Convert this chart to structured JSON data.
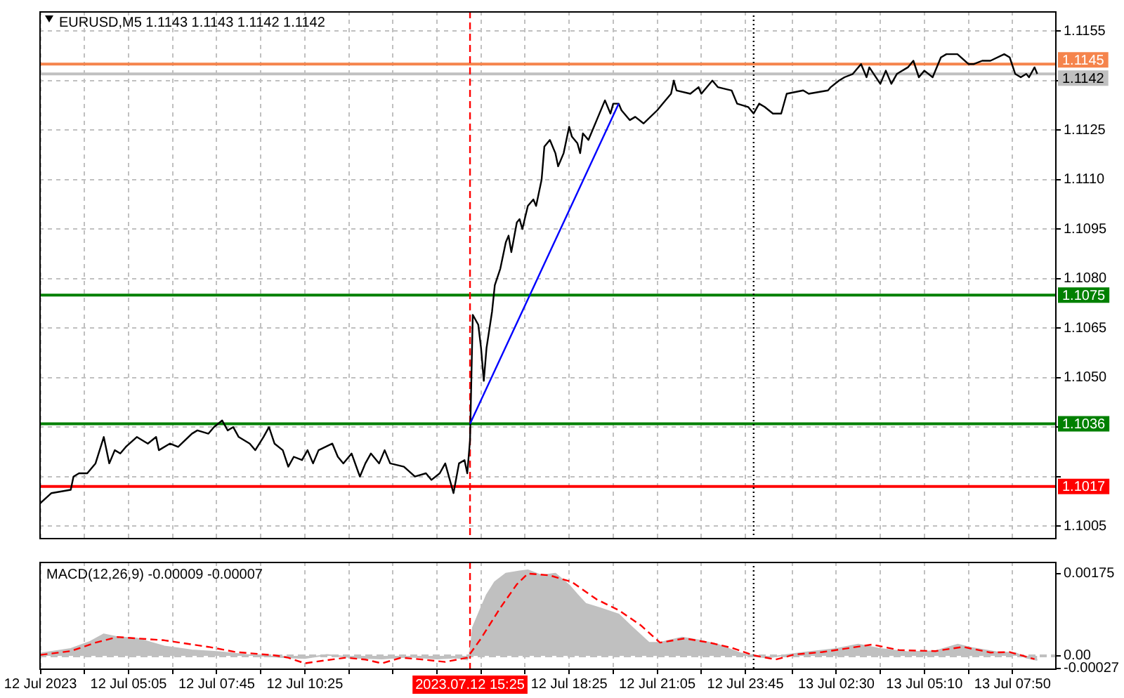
{
  "chart_data": [
    {
      "type": "line",
      "title": "EURUSD,M5 1.1143 1.1143 1.1142 1.1142",
      "xlim": [
        "2023-07-12T02:23",
        "2023-07-13T09:10"
      ],
      "xticks": [
        {
          "value": "2023-07-12T02:25",
          "label": null
        },
        {
          "value": "2023-07-12T03:45",
          "label": null
        },
        {
          "value": "2023-07-12T05:05",
          "label": null
        },
        {
          "value": "2023-07-12T06:25",
          "label": null
        },
        {
          "value": "2023-07-12T07:45",
          "label": null
        },
        {
          "value": "2023-07-12T09:05",
          "label": null
        },
        {
          "value": "2023-07-12T10:25",
          "label": null
        },
        {
          "value": "2023-07-12T11:45",
          "label": null
        },
        {
          "value": "2023-07-12T13:05",
          "label": null
        },
        {
          "value": "2023-07-12T14:25",
          "label": null
        },
        {
          "value": "2023-07-12T15:45",
          "label": null
        },
        {
          "value": "2023-07-12T17:05",
          "label": null
        },
        {
          "value": "2023-07-12T18:25",
          "label": null
        },
        {
          "value": "2023-07-12T19:45",
          "label": null
        },
        {
          "value": "2023-07-12T21:05",
          "label": null
        },
        {
          "value": "2023-07-12T22:25",
          "label": null
        },
        {
          "value": "2023-07-12T23:45",
          "label": null
        },
        {
          "value": "2023-07-13T01:10",
          "label": null
        },
        {
          "value": "2023-07-13T02:30",
          "label": null
        },
        {
          "value": "2023-07-13T03:50",
          "label": null
        },
        {
          "value": "2023-07-13T05:10",
          "label": null
        },
        {
          "value": "2023-07-13T06:30",
          "label": null
        },
        {
          "value": "2023-07-13T07:50",
          "label": null
        }
      ],
      "ylim": [
        1.1001,
        1.1161
      ],
      "yticks": [
        1.1005,
        {
          "value": 1.102,
          "label": null
        },
        {
          "value": 1.1035,
          "label": null
        },
        {
          "value": 1.105,
          "label": "1.1050"
        },
        1.1065,
        {
          "value": 1.108,
          "label": "1.1080"
        },
        1.1095,
        {
          "value": 1.111,
          "label": "1.1110"
        },
        1.1125,
        {
          "value": 1.114,
          "label": null
        },
        1.1155
      ],
      "grid": true,
      "tick_labels": "y",
      "marker": "none",
      "series": [
        {
          "color": "#000000",
          "x": [
            "2023-07-12T02:25",
            "2023-07-12T02:45",
            "2023-07-12T03:20",
            "2023-07-12T03:25",
            "2023-07-12T03:35",
            "2023-07-12T03:50",
            "2023-07-12T04:05",
            "2023-07-12T04:20",
            "2023-07-12T04:30",
            "2023-07-12T04:40",
            "2023-07-12T04:50",
            "2023-07-12T05:00",
            "2023-07-12T05:20",
            "2023-07-12T05:40",
            "2023-07-12T05:55",
            "2023-07-12T06:00",
            "2023-07-12T06:20",
            "2023-07-12T06:35",
            "2023-07-12T07:00",
            "2023-07-12T07:10",
            "2023-07-12T07:30",
            "2023-07-12T07:40",
            "2023-07-12T07:55",
            "2023-07-12T08:05",
            "2023-07-12T08:15",
            "2023-07-12T08:25",
            "2023-07-12T08:45",
            "2023-07-12T08:55",
            "2023-07-12T09:10",
            "2023-07-12T09:20",
            "2023-07-12T09:30",
            "2023-07-12T09:45",
            "2023-07-12T09:55",
            "2023-07-12T10:05",
            "2023-07-12T10:20",
            "2023-07-12T10:30",
            "2023-07-12T10:40",
            "2023-07-12T10:50",
            "2023-07-12T11:15",
            "2023-07-12T11:25",
            "2023-07-12T11:35",
            "2023-07-12T11:50",
            "2023-07-12T12:05",
            "2023-07-12T12:15",
            "2023-07-12T12:25",
            "2023-07-12T12:40",
            "2023-07-12T12:50",
            "2023-07-12T13:00",
            "2023-07-12T13:25",
            "2023-07-12T13:45",
            "2023-07-12T14:05",
            "2023-07-12T14:15",
            "2023-07-12T14:30",
            "2023-07-12T14:40",
            "2023-07-12T14:55",
            "2023-07-12T15:05",
            "2023-07-12T15:15",
            "2023-07-12T15:20",
            "2023-07-12T15:25",
            "2023-07-12T15:30",
            "2023-07-12T15:40",
            "2023-07-12T15:45",
            "2023-07-12T15:50",
            "2023-07-12T15:55",
            "2023-07-12T16:05",
            "2023-07-12T16:10",
            "2023-07-12T16:20",
            "2023-07-12T16:30",
            "2023-07-12T16:35",
            "2023-07-12T16:40",
            "2023-07-12T16:50",
            "2023-07-12T16:55",
            "2023-07-12T17:00",
            "2023-07-12T17:10",
            "2023-07-12T17:20",
            "2023-07-12T17:25",
            "2023-07-12T17:35",
            "2023-07-12T17:40",
            "2023-07-12T17:50",
            "2023-07-12T18:00",
            "2023-07-12T18:05",
            "2023-07-12T18:15",
            "2023-07-12T18:25",
            "2023-07-12T18:30",
            "2023-07-12T18:40",
            "2023-07-12T18:45",
            "2023-07-12T18:50",
            "2023-07-12T19:00",
            "2023-07-12T19:10",
            "2023-07-12T19:15",
            "2023-07-12T19:30",
            "2023-07-12T19:40",
            "2023-07-12T19:45",
            "2023-07-12T19:55",
            "2023-07-12T20:00",
            "2023-07-12T20:15",
            "2023-07-12T20:25",
            "2023-07-12T20:40",
            "2023-07-12T21:05",
            "2023-07-12T21:15",
            "2023-07-12T21:30",
            "2023-07-12T21:35",
            "2023-07-12T21:40",
            "2023-07-12T22:05",
            "2023-07-12T22:20",
            "2023-07-12T22:25",
            "2023-07-12T22:45",
            "2023-07-12T22:55",
            "2023-07-12T23:20",
            "2023-07-12T23:30",
            "2023-07-12T23:50",
            "2023-07-13T00:00",
            "2023-07-13T00:10",
            "2023-07-13T00:20",
            "2023-07-13T00:35",
            "2023-07-13T00:50",
            "2023-07-13T01:00",
            "2023-07-13T01:30",
            "2023-07-13T01:40",
            "2023-07-13T02:15",
            "2023-07-13T02:20",
            "2023-07-13T02:35",
            "2023-07-13T02:45",
            "2023-07-13T03:00",
            "2023-07-13T03:15",
            "2023-07-13T03:25",
            "2023-07-13T03:30",
            "2023-07-13T03:50",
            "2023-07-13T04:00",
            "2023-07-13T04:10",
            "2023-07-13T04:20",
            "2023-07-13T04:40",
            "2023-07-13T04:50",
            "2023-07-13T05:00",
            "2023-07-13T05:10",
            "2023-07-13T05:25",
            "2023-07-13T05:40",
            "2023-07-13T05:50",
            "2023-07-13T06:10",
            "2023-07-13T06:30",
            "2023-07-13T06:40",
            "2023-07-13T06:55",
            "2023-07-13T07:10",
            "2023-07-13T07:35",
            "2023-07-13T07:45",
            "2023-07-13T07:55",
            "2023-07-13T08:05",
            "2023-07-13T08:15",
            "2023-07-13T08:20",
            "2023-07-13T08:30",
            "2023-07-13T08:35"
          ],
          "values": [
            1.1012,
            1.1015,
            1.1016,
            1.102,
            1.1021,
            1.1021,
            1.1024,
            1.1032,
            1.1024,
            1.1028,
            1.1027,
            1.1029,
            1.1032,
            1.103,
            1.1032,
            1.1028,
            1.103,
            1.1029,
            1.1033,
            1.1034,
            1.1033,
            1.1035,
            1.1037,
            1.1034,
            1.1035,
            1.1032,
            1.103,
            1.1028,
            1.1032,
            1.1035,
            1.103,
            1.1028,
            1.1023,
            1.1026,
            1.1025,
            1.1028,
            1.1024,
            1.1028,
            1.103,
            1.1026,
            1.1024,
            1.1027,
            1.102,
            1.1024,
            1.1027,
            1.1024,
            1.1028,
            1.1024,
            1.1023,
            1.102,
            1.1021,
            1.1019,
            1.1021,
            1.1024,
            1.1015,
            1.1024,
            1.1025,
            1.1021,
            1.1031,
            1.1069,
            1.1066,
            1.1059,
            1.1049,
            1.1059,
            1.107,
            1.1078,
            1.1083,
            1.1091,
            1.1093,
            1.1088,
            1.1097,
            1.1098,
            1.1095,
            1.1102,
            1.1104,
            1.1102,
            1.111,
            1.112,
            1.1122,
            1.1118,
            1.1114,
            1.1118,
            1.1126,
            1.1123,
            1.1121,
            1.1118,
            1.1124,
            1.1122,
            1.1126,
            1.1128,
            1.1134,
            1.113,
            1.1133,
            1.1133,
            1.1131,
            1.1128,
            1.1129,
            1.1127,
            1.1131,
            1.1133,
            1.1136,
            1.114,
            1.1137,
            1.1136,
            1.1138,
            1.1136,
            1.114,
            1.1138,
            1.1137,
            1.1133,
            1.1132,
            1.113,
            1.1133,
            1.1132,
            1.113,
            1.113,
            1.1136,
            1.1137,
            1.1136,
            1.1137,
            1.1138,
            1.114,
            1.1141,
            1.1142,
            1.1145,
            1.1141,
            1.1144,
            1.1139,
            1.1143,
            1.1139,
            1.1142,
            1.1144,
            1.1146,
            1.1141,
            1.1143,
            1.1141,
            1.1147,
            1.1148,
            1.1148,
            1.1145,
            1.1145,
            1.1146,
            1.1146,
            1.1148,
            1.1147,
            1.1142,
            1.1141,
            1.1142,
            1.1141,
            1.1144,
            1.1142
          ]
        },
        {
          "color": "#0000ff",
          "x": [
            "2023-07-12T15:25",
            "2023-07-12T19:55"
          ],
          "values": [
            1.1036,
            1.1133
          ]
        }
      ],
      "ref_lines": [
        {
          "axis": "y",
          "value": 1.1145,
          "label": "1.1145",
          "color": "#f5844c"
        },
        {
          "axis": "y",
          "value": 1.1142,
          "label": "1.1142",
          "color": "#c0c0c0"
        },
        {
          "axis": "y",
          "value": 1.1075,
          "label": "1.1075",
          "color": "#008000"
        },
        {
          "axis": "y",
          "value": 1.1036,
          "label": "1.1036",
          "color": "#008000"
        },
        {
          "axis": "y",
          "value": 1.1017,
          "label": "1.1017",
          "color": "#ff0000"
        },
        {
          "axis": "x",
          "value": "2023-07-12T15:25",
          "color": "#ff0000",
          "line_style": "dashed"
        },
        {
          "axis": "x",
          "value": "2023-07-13T00:00",
          "color": "#000000",
          "line_style": "dotted"
        }
      ]
    },
    {
      "type": "area",
      "title": "MACD(12,26,9) -0.00009 -0.00007",
      "xlim": [
        "2023-07-12T02:23",
        "2023-07-13T09:10"
      ],
      "xticks": [
        {
          "value": "2023-07-12T02:25",
          "label": "12 Jul 2023"
        },
        {
          "value": "2023-07-12T03:45",
          "label": null
        },
        {
          "value": "2023-07-12T05:05",
          "label": "12 Jul 05:05"
        },
        {
          "value": "2023-07-12T06:25",
          "label": null
        },
        {
          "value": "2023-07-12T07:45",
          "label": "12 Jul 07:45"
        },
        {
          "value": "2023-07-12T09:05",
          "label": null
        },
        {
          "value": "2023-07-12T10:25",
          "label": "12 Jul 10:25"
        },
        {
          "value": "2023-07-12T11:45",
          "label": null
        },
        {
          "value": "2023-07-12T13:05",
          "label": null
        },
        {
          "value": "2023-07-12T14:25",
          "label": null
        },
        {
          "value": "2023-07-12T15:45",
          "label": null
        },
        {
          "value": "2023-07-12T17:05",
          "label": null
        },
        {
          "value": "2023-07-12T18:25",
          "label": "12 Jul 18:25"
        },
        {
          "value": "2023-07-12T19:45",
          "label": null
        },
        {
          "value": "2023-07-12T21:05",
          "label": "12 Jul 21:05"
        },
        {
          "value": "2023-07-12T22:25",
          "label": null
        },
        {
          "value": "2023-07-12T23:45",
          "label": "12 Jul 23:45"
        },
        {
          "value": "2023-07-13T01:10",
          "label": null
        },
        {
          "value": "2023-07-13T02:30",
          "label": "13 Jul 02:30"
        },
        {
          "value": "2023-07-13T03:50",
          "label": null
        },
        {
          "value": "2023-07-13T05:10",
          "label": "13 Jul 05:10"
        },
        {
          "value": "2023-07-13T06:30",
          "label": null
        },
        {
          "value": "2023-07-13T07:50",
          "label": "13 Jul 07:50"
        }
      ],
      "ylim": [
        -0.0003,
        0.002
      ],
      "yticks": [
        -0.00027,
        {
          "value": 0,
          "label": "0.00"
        },
        0.00175
      ],
      "grid": "x",
      "marker": "none",
      "series": [
        {
          "color": "#c0c0c0",
          "x": [
            "2023-07-12T02:25",
            "2023-07-12T03:20",
            "2023-07-12T03:55",
            "2023-07-12T04:20",
            "2023-07-12T04:45",
            "2023-07-12T05:20",
            "2023-07-12T06:10",
            "2023-07-12T07:00",
            "2023-07-12T07:50",
            "2023-07-12T08:40",
            "2023-07-12T09:45",
            "2023-07-12T10:25",
            "2023-07-12T11:05",
            "2023-07-12T11:55",
            "2023-07-12T12:45",
            "2023-07-12T13:35",
            "2023-07-12T14:25",
            "2023-07-12T15:00",
            "2023-07-12T15:20",
            "2023-07-12T15:25",
            "2023-07-12T15:30",
            "2023-07-12T15:45",
            "2023-07-12T15:55",
            "2023-07-12T16:10",
            "2023-07-12T16:30",
            "2023-07-12T16:55",
            "2023-07-12T17:10",
            "2023-07-12T17:35",
            "2023-07-12T18:00",
            "2023-07-12T18:25",
            "2023-07-12T18:40",
            "2023-07-12T18:55",
            "2023-07-12T19:20",
            "2023-07-12T19:55",
            "2023-07-12T20:20",
            "2023-07-12T20:50",
            "2023-07-12T21:10",
            "2023-07-12T21:50",
            "2023-07-12T22:20",
            "2023-07-12T22:55",
            "2023-07-12T23:35",
            "2023-07-13T00:00",
            "2023-07-13T00:25",
            "2023-07-13T01:05",
            "2023-07-13T01:40",
            "2023-07-13T02:30",
            "2023-07-13T03:10",
            "2023-07-13T03:50",
            "2023-07-13T04:40",
            "2023-07-13T05:30",
            "2023-07-13T06:10",
            "2023-07-13T06:35",
            "2023-07-13T07:20",
            "2023-07-13T07:55",
            "2023-07-13T08:15",
            "2023-07-13T08:35"
          ],
          "values": [
            5e-05,
            0.00015,
            0.0003,
            0.00046,
            0.0004,
            0.00037,
            0.0002,
            0.00012,
            8e-05,
            2e-05,
            -3e-05,
            -5e-05,
            2e-05,
            -4e-05,
            -6e-05,
            -2e-05,
            -6e-05,
            -4e-05,
            -8e-05,
            5e-05,
            0.0006,
            0.00102,
            0.00129,
            0.00157,
            0.00175,
            0.0018,
            0.00182,
            0.00171,
            0.00175,
            0.0015,
            0.0013,
            0.00111,
            0.00102,
            0.00088,
            0.0006,
            0.00028,
            0.00028,
            0.00039,
            0.00033,
            0.00024,
            6e-05,
            -1e-05,
            -4e-05,
            3e-05,
            8e-05,
            0.00015,
            0.00024,
            0.00015,
            8e-05,
            0.0001,
            0.00024,
            0.00017,
            8e-05,
            6e-05,
            -4e-05,
            -9e-05
          ]
        },
        {
          "type": "line",
          "color": "#ff0000",
          "line_style": "dashed",
          "x": [
            "2023-07-12T02:25",
            "2023-07-12T03:20",
            "2023-07-12T04:05",
            "2023-07-12T04:45",
            "2023-07-12T05:20",
            "2023-07-12T06:10",
            "2023-07-12T07:30",
            "2023-07-12T08:20",
            "2023-07-12T09:30",
            "2023-07-12T09:55",
            "2023-07-12T10:25",
            "2023-07-12T11:00",
            "2023-07-12T11:40",
            "2023-07-12T12:15",
            "2023-07-12T12:45",
            "2023-07-12T13:20",
            "2023-07-12T14:00",
            "2023-07-12T14:40",
            "2023-07-12T15:20",
            "2023-07-12T15:45",
            "2023-07-12T16:20",
            "2023-07-12T16:50",
            "2023-07-12T17:10",
            "2023-07-12T17:50",
            "2023-07-12T18:30",
            "2023-07-12T19:15",
            "2023-07-12T19:55",
            "2023-07-12T20:35",
            "2023-07-12T21:10",
            "2023-07-12T21:55",
            "2023-07-12T22:40",
            "2023-07-12T23:20",
            "2023-07-13T00:00",
            "2023-07-13T00:40",
            "2023-07-13T01:15",
            "2023-07-13T02:05",
            "2023-07-13T02:45",
            "2023-07-13T03:35",
            "2023-07-13T04:25",
            "2023-07-13T05:30",
            "2023-07-13T06:20",
            "2023-07-13T07:10",
            "2023-07-13T07:45",
            "2023-07-13T08:30"
          ],
          "values": [
            2e-05,
            0.0001,
            0.00028,
            0.0004,
            0.00037,
            0.00033,
            0.00019,
            8e-05,
            1e-05,
            -4e-05,
            -0.00016,
            -0.0001,
            -4e-05,
            -8e-05,
            -0.00016,
            -4e-05,
            -8e-05,
            -0.00013,
            -4e-05,
            0.00037,
            0.00102,
            0.00152,
            0.00175,
            0.00171,
            0.00157,
            0.0012,
            0.00097,
            0.00065,
            0.00028,
            0.00037,
            0.00028,
            0.00017,
            1e-05,
            -8e-05,
            3e-05,
            8e-05,
            0.00015,
            0.00024,
            0.00012,
            0.0001,
            0.00019,
            7e-05,
            8e-05,
            -7e-05
          ]
        }
      ],
      "ref_lines": [
        {
          "axis": "y",
          "value": 0,
          "color": "#c0c0c0",
          "line_style": "dashed"
        },
        {
          "axis": "x",
          "value": "2023-07-12T15:25",
          "label": "2023.07.12 15:25",
          "color": "#ff0000",
          "line_style": "dashed"
        },
        {
          "axis": "x",
          "value": "2023-07-13T00:00",
          "color": "#000000",
          "line_style": "dotted"
        }
      ]
    }
  ]
}
